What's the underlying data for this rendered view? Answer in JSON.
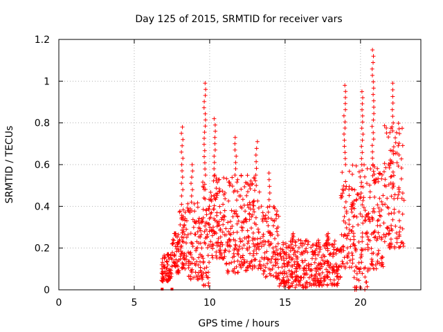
{
  "chart_data": {
    "type": "scatter",
    "title": "Day 125 of 2015, SRMTID for receiver vars",
    "xlabel": "GPS time / hours",
    "ylabel": "SRMTID / TECUs",
    "xlim": [
      0,
      24
    ],
    "ylim": [
      0,
      1.2
    ],
    "xticks": [
      0,
      5,
      10,
      15,
      20
    ],
    "xtick_labels": [
      "0",
      "5",
      "10",
      "15",
      "20"
    ],
    "yticks": [
      0,
      0.2,
      0.4,
      0.6,
      0.8,
      1.0,
      1.2
    ],
    "ytick_labels": [
      "0",
      "0.2",
      "0.4",
      "0.6",
      "0.8",
      "1",
      "1.2"
    ],
    "grid": true,
    "marker": "+",
    "color": "#ff0000",
    "zero_markers": [
      6.85,
      7.5
    ],
    "segments": [
      {
        "x0": 6.8,
        "x1": 7.5,
        "min": 0.04,
        "max": 0.17,
        "peak": 0.17,
        "n": 70
      },
      {
        "x0": 7.5,
        "x1": 8.0,
        "min": 0.08,
        "max": 0.27,
        "peak": 0.27,
        "n": 50
      },
      {
        "x0": 8.0,
        "x1": 8.5,
        "min": 0.1,
        "max": 0.45,
        "peak": 0.78,
        "n": 55
      },
      {
        "x0": 8.5,
        "x1": 9.5,
        "min": 0.05,
        "max": 0.42,
        "peak": 0.6,
        "n": 90
      },
      {
        "x0": 9.5,
        "x1": 10.0,
        "min": 0.02,
        "max": 0.55,
        "peak": 0.99,
        "n": 55
      },
      {
        "x0": 10.0,
        "x1": 11.0,
        "min": 0.15,
        "max": 0.55,
        "peak": 0.82,
        "n": 100
      },
      {
        "x0": 11.0,
        "x1": 12.5,
        "min": 0.08,
        "max": 0.55,
        "peak": 0.73,
        "n": 130
      },
      {
        "x0": 12.5,
        "x1": 13.5,
        "min": 0.1,
        "max": 0.55,
        "peak": 0.71,
        "n": 95
      },
      {
        "x0": 13.5,
        "x1": 14.6,
        "min": 0.05,
        "max": 0.4,
        "peak": 0.56,
        "n": 95
      },
      {
        "x0": 14.6,
        "x1": 16.5,
        "min": 0.01,
        "max": 0.24,
        "peak": 0.27,
        "n": 175
      },
      {
        "x0": 16.5,
        "x1": 18.7,
        "min": 0.02,
        "max": 0.24,
        "peak": 0.27,
        "n": 190
      },
      {
        "x0": 18.7,
        "x1": 19.5,
        "min": 0.1,
        "max": 0.6,
        "peak": 0.98,
        "n": 75
      },
      {
        "x0": 19.5,
        "x1": 20.5,
        "min": 0.0,
        "max": 0.6,
        "peak": 0.95,
        "n": 95
      },
      {
        "x0": 20.5,
        "x1": 21.5,
        "min": 0.1,
        "max": 0.6,
        "peak": 1.15,
        "n": 95
      },
      {
        "x0": 21.5,
        "x1": 22.9,
        "min": 0.2,
        "max": 0.8,
        "peak": 0.99,
        "n": 120
      }
    ]
  }
}
